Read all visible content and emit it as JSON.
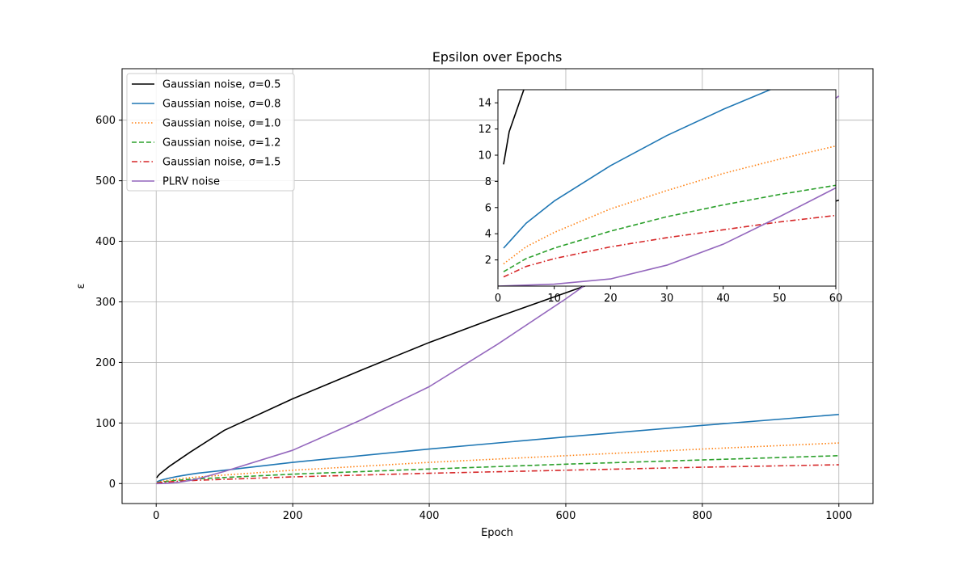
{
  "chart_data": {
    "type": "line",
    "title": "Epsilon over Epochs",
    "xlabel": "Epoch",
    "ylabel": "ε",
    "xlim": [
      -50,
      1050
    ],
    "ylim": [
      -33,
      685
    ],
    "xticks": [
      0,
      200,
      400,
      600,
      800,
      1000
    ],
    "yticks": [
      0,
      100,
      200,
      300,
      400,
      500,
      600
    ],
    "grid": true,
    "legend_position": "top-left",
    "series": [
      {
        "name": "Gaussian noise, σ=0.5",
        "color": "#000000",
        "style": "solid",
        "x": [
          1,
          2,
          5,
          10,
          20,
          50,
          100,
          200,
          300,
          400,
          500,
          600,
          700,
          800,
          900,
          1000
        ],
        "y": [
          9.3,
          11.8,
          15.5,
          20,
          29,
          52,
          88,
          140,
          187,
          233,
          275,
          315,
          355,
          395,
          432,
          468
        ]
      },
      {
        "name": "Gaussian noise, σ=0.8",
        "color": "#1f77b4",
        "style": "solid",
        "x": [
          1,
          5,
          10,
          20,
          30,
          40,
          50,
          60,
          100,
          200,
          400,
          600,
          800,
          1000
        ],
        "y": [
          2.9,
          4.8,
          6.5,
          9.2,
          11.5,
          13.5,
          15.3,
          17,
          22,
          35,
          57,
          77,
          96,
          114
        ]
      },
      {
        "name": "Gaussian noise, σ=1.0",
        "color": "#ff7f0e",
        "style": "dotted",
        "x": [
          1,
          5,
          10,
          20,
          30,
          40,
          50,
          60,
          100,
          200,
          400,
          600,
          800,
          1000
        ],
        "y": [
          1.7,
          3.0,
          4.1,
          5.9,
          7.3,
          8.6,
          9.7,
          10.7,
          14,
          22,
          35,
          46,
          57,
          67
        ]
      },
      {
        "name": "Gaussian noise, σ=1.2",
        "color": "#2ca02c",
        "style": "dashed",
        "x": [
          1,
          5,
          10,
          20,
          30,
          40,
          50,
          60,
          100,
          200,
          400,
          600,
          800,
          1000
        ],
        "y": [
          1.1,
          2.1,
          2.9,
          4.2,
          5.3,
          6.2,
          7.0,
          7.7,
          10,
          15.5,
          24,
          32,
          39,
          46
        ]
      },
      {
        "name": "Gaussian noise, σ=1.5",
        "color": "#d62728",
        "style": "dashdot",
        "x": [
          1,
          5,
          10,
          20,
          30,
          40,
          50,
          60,
          100,
          200,
          400,
          600,
          800,
          1000
        ],
        "y": [
          0.7,
          1.5,
          2.1,
          3.0,
          3.7,
          4.3,
          4.9,
          5.4,
          7,
          11,
          17,
          22,
          27,
          31
        ]
      },
      {
        "name": "PLRV noise",
        "color": "#9467bd",
        "style": "solid",
        "x": [
          0,
          10,
          20,
          30,
          40,
          50,
          60,
          100,
          200,
          300,
          400,
          500,
          600,
          700,
          800,
          900,
          1000
        ],
        "y": [
          0,
          0.15,
          0.55,
          1.6,
          3.2,
          5.3,
          7.5,
          20,
          55,
          105,
          160,
          230,
          305,
          385,
          470,
          555,
          640
        ]
      }
    ],
    "inset": {
      "xlim": [
        0,
        60
      ],
      "ylim": [
        0,
        15
      ],
      "xticks": [
        0,
        10,
        20,
        30,
        40,
        50,
        60
      ],
      "yticks": [
        2,
        4,
        6,
        8,
        10,
        12,
        14
      ]
    }
  }
}
